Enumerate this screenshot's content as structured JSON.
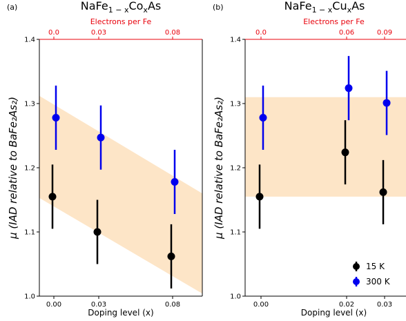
{
  "chart_data": [
    {
      "type": "scatter",
      "panel_label": "(a)",
      "title": "NaFe",
      "title_sub": "1 − x",
      "title_mid": "Co",
      "title_sub2": "x",
      "title_end": "As",
      "xlabel": "Doping level (x)",
      "ylabel": "μ (IAD relative to BaFe₂As₂)",
      "top_xlabel": "Electrons per Fe",
      "x_ticks": [
        "0.00",
        "0.03",
        "0.08"
      ],
      "top_ticks": [
        "0.0",
        "0.03",
        "0.08"
      ],
      "y_ticks": [
        "1.0",
        "1.1",
        "1.2",
        "1.3",
        "1.4"
      ],
      "ylim": [
        1.0,
        1.4
      ],
      "band": {
        "left_low": 1.153,
        "left_high": 1.312,
        "right_low": 1.004,
        "right_high": 1.16
      },
      "series": [
        {
          "name": "15 K",
          "color": "#000000",
          "points": [
            {
              "x": "0.00",
              "y": 1.155,
              "err": 0.05
            },
            {
              "x": "0.03",
              "y": 1.1,
              "err": 0.05
            },
            {
              "x": "0.08",
              "y": 1.062,
              "err": 0.05
            }
          ]
        },
        {
          "name": "300 K",
          "color": "#0000ee",
          "points": [
            {
              "x": "0.00",
              "y": 1.278,
              "err": 0.05
            },
            {
              "x": "0.03",
              "y": 1.247,
              "err": 0.05
            },
            {
              "x": "0.08",
              "y": 1.178,
              "err": 0.05
            }
          ]
        }
      ]
    },
    {
      "type": "scatter",
      "panel_label": "(b)",
      "title": "NaFe",
      "title_sub": "1 − x",
      "title_mid": "Cu",
      "title_sub2": "x",
      "title_end": "As",
      "xlabel": "Doping level (x)",
      "ylabel": "μ (IAD relative to BaFe₂As₂)",
      "top_xlabel": "Electrons per Fe",
      "x_ticks": [
        "0.00",
        "0.02",
        "0.03"
      ],
      "top_ticks": [
        "0.0",
        "0.06",
        "0.09"
      ],
      "y_ticks": [
        "1.0",
        "1.1",
        "1.2",
        "1.3",
        "1.4"
      ],
      "ylim": [
        1.0,
        1.4
      ],
      "band": {
        "left_low": 1.155,
        "left_high": 1.31,
        "right_low": 1.155,
        "right_high": 1.31
      },
      "series": [
        {
          "name": "15 K",
          "color": "#000000",
          "points": [
            {
              "x": "0.00",
              "y": 1.155,
              "err": 0.05
            },
            {
              "x": "0.02",
              "y": 1.224,
              "err": 0.05
            },
            {
              "x": "0.03",
              "y": 1.162,
              "err": 0.05
            }
          ]
        },
        {
          "name": "300 K",
          "color": "#0000ee",
          "points": [
            {
              "x": "0.00",
              "y": 1.278,
              "err": 0.05
            },
            {
              "x": "0.02",
              "y": 1.324,
              "err": 0.05
            },
            {
              "x": "0.03",
              "y": 1.301,
              "err": 0.05
            }
          ]
        }
      ],
      "legend": {
        "position": "lower-right",
        "entries": [
          "15 K",
          "300 K"
        ]
      }
    }
  ],
  "colors": {
    "band": "#fde5c7",
    "top_axis": "#e8000b"
  }
}
